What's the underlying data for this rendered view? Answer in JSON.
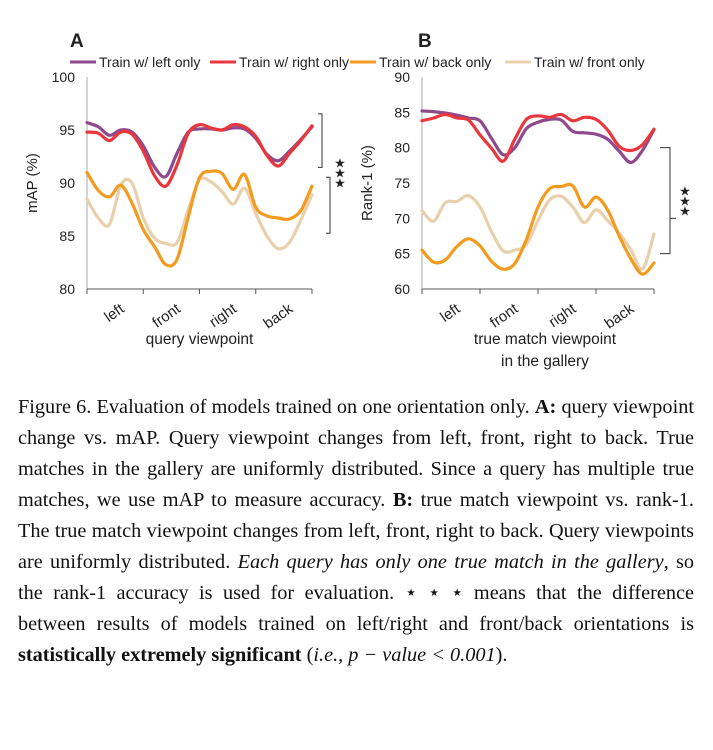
{
  "legend": [
    {
      "name": "Train w/ left only",
      "color": "#8e4a8c"
    },
    {
      "name": "Train w/ right only",
      "color": "#e8383d"
    },
    {
      "name": "Train w/ back only",
      "color": "#f39b1f"
    },
    {
      "name": "Train w/ front only",
      "color": "#e9d0ac"
    }
  ],
  "significance_marker": "★★★",
  "chart_data": [
    {
      "type": "line",
      "panel_label": "A",
      "ylabel": "mAP (%)",
      "xlabel": "query viewpoint",
      "ylim": [
        80,
        100
      ],
      "yticks": [
        80,
        85,
        90,
        95,
        100
      ],
      "xlim": [
        0,
        1
      ],
      "xticks": [
        {
          "label": "left",
          "x": 0.125
        },
        {
          "label": "front",
          "x": 0.375
        },
        {
          "label": "right",
          "x": 0.625
        },
        {
          "label": "back",
          "x": 0.875
        }
      ],
      "grid": false,
      "x": [
        0,
        0.05,
        0.1,
        0.15,
        0.2,
        0.25,
        0.3,
        0.35,
        0.4,
        0.45,
        0.5,
        0.55,
        0.6,
        0.65,
        0.7,
        0.75,
        0.8,
        0.85,
        0.9,
        0.95,
        1.0
      ],
      "series": [
        {
          "name": "Train w/ left only",
          "values": [
            95.7,
            95.3,
            94.5,
            95.0,
            94.8,
            93.5,
            91.5,
            90.6,
            92.8,
            94.8,
            95.1,
            95.1,
            95.0,
            95.2,
            95.1,
            94.2,
            92.7,
            92.1,
            93.0,
            94.1,
            95.3
          ]
        },
        {
          "name": "Train w/ right only",
          "values": [
            94.8,
            94.7,
            94.0,
            94.8,
            94.6,
            93.0,
            90.7,
            89.7,
            91.7,
            94.7,
            95.5,
            95.2,
            95.0,
            95.5,
            95.3,
            94.4,
            92.6,
            91.6,
            92.8,
            94.0,
            95.4
          ]
        },
        {
          "name": "Train w/ back only",
          "values": [
            91.0,
            89.3,
            88.7,
            89.8,
            88.1,
            85.6,
            84.0,
            82.3,
            82.8,
            86.8,
            90.5,
            91.1,
            90.9,
            89.4,
            90.8,
            87.7,
            86.9,
            86.7,
            86.6,
            87.4,
            89.7
          ]
        },
        {
          "name": "Train w/ front only",
          "values": [
            88.5,
            86.7,
            86.1,
            89.8,
            90.0,
            86.7,
            84.8,
            84.3,
            84.4,
            87.5,
            90.3,
            90.1,
            89.2,
            88.0,
            89.5,
            87.1,
            85.0,
            83.8,
            84.4,
            86.5,
            88.9
          ]
        }
      ]
    },
    {
      "type": "line",
      "panel_label": "B",
      "ylabel": "Rank-1 (%)",
      "xlabel": "true match viewpoint in the gallery",
      "ylim": [
        60,
        90
      ],
      "yticks": [
        60,
        65,
        70,
        75,
        80,
        85,
        90
      ],
      "xlim": [
        0,
        1
      ],
      "xticks": [
        {
          "label": "left",
          "x": 0.125
        },
        {
          "label": "front",
          "x": 0.375
        },
        {
          "label": "right",
          "x": 0.625
        },
        {
          "label": "back",
          "x": 0.875
        }
      ],
      "grid": false,
      "x": [
        0,
        0.05,
        0.1,
        0.15,
        0.2,
        0.25,
        0.3,
        0.35,
        0.4,
        0.45,
        0.5,
        0.55,
        0.6,
        0.65,
        0.7,
        0.75,
        0.8,
        0.85,
        0.9,
        0.95,
        1.0
      ],
      "series": [
        {
          "name": "Train w/ left only",
          "values": [
            85.2,
            85.1,
            84.9,
            84.6,
            84.2,
            83.8,
            81.3,
            79.0,
            80.0,
            82.7,
            83.6,
            84.0,
            83.9,
            82.3,
            82.1,
            81.9,
            81.2,
            79.5,
            77.9,
            79.6,
            82.6
          ]
        },
        {
          "name": "Train w/ right only",
          "values": [
            83.8,
            84.2,
            84.7,
            84.2,
            83.9,
            81.8,
            79.9,
            78.1,
            81.2,
            84.0,
            84.5,
            84.3,
            84.7,
            83.8,
            84.3,
            84.0,
            82.5,
            80.2,
            79.6,
            80.4,
            82.6
          ]
        },
        {
          "name": "Train w/ back only",
          "values": [
            65.5,
            63.8,
            64.1,
            66.0,
            67.1,
            66.1,
            63.9,
            62.8,
            63.6,
            67.0,
            71.6,
            74.2,
            74.5,
            74.6,
            71.6,
            73.0,
            71.2,
            67.5,
            64.3,
            62.1,
            63.7
          ]
        },
        {
          "name": "Train w/ front only",
          "values": [
            71.1,
            69.6,
            72.2,
            72.4,
            73.2,
            71.6,
            68.1,
            65.4,
            65.5,
            66.3,
            69.7,
            72.6,
            73.1,
            71.6,
            69.4,
            71.2,
            69.7,
            67.9,
            65.6,
            62.8,
            67.8
          ]
        }
      ]
    }
  ],
  "caption": {
    "fig": "Figure 6. Evaluation of models trained on one orientation only.",
    "a_label": "A:",
    "a_text": "query viewpoint change vs. mAP. Query viewpoint changes from left, front, right to back. True matches in the gallery are uniformly distributed. Since a query has multiple true matches, we use mAP to measure accuracy.",
    "b_label": "B:",
    "b_text": "true match viewpoint vs. rank-1. The true match viewpoint changes from left, front, right to back. Query viewpoints are uniformly distributed.",
    "b_italic": "Each query has only one true match in the gallery",
    "b_text2": ", so the rank-1 accuracy is used for evaluation.",
    "stars": "⋆ ⋆ ⋆",
    "stars_text": "means that the difference between results of models trained on left/right and front/back orientations is",
    "bold_phrase": "statistically extremely significant",
    "paren_open": "(",
    "ie": "i.e.",
    "p_expr": ", p − value < 0.001",
    "paren_close": ")."
  }
}
